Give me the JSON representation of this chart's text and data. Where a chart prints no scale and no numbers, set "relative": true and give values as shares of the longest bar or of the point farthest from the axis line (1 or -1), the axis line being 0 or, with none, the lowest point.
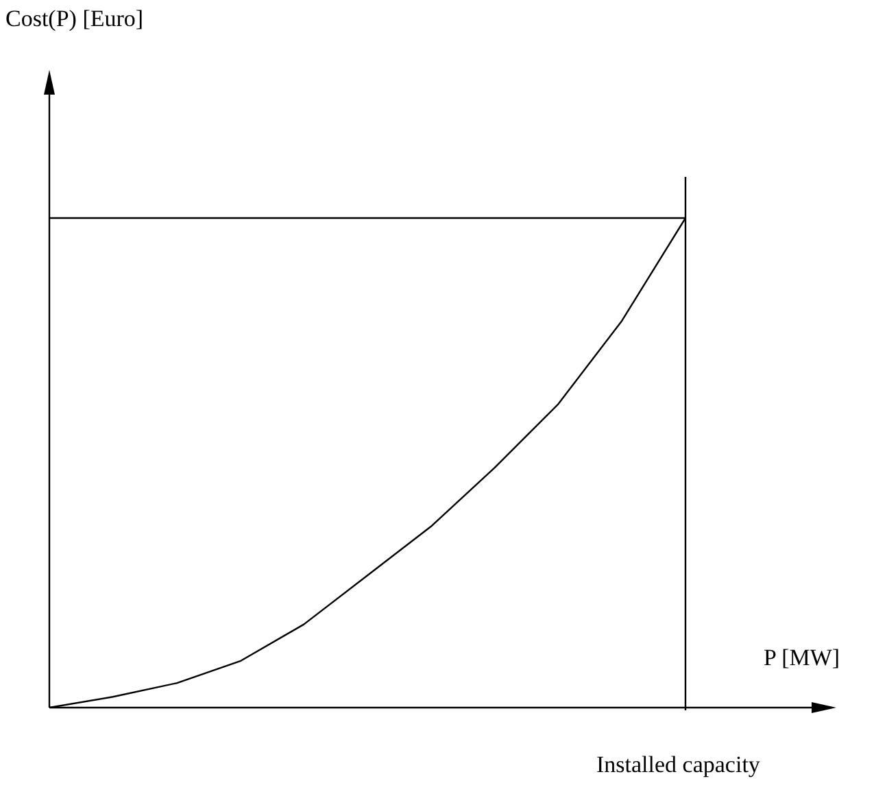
{
  "chart_data": {
    "type": "line",
    "relative": true,
    "xlabel": "P [MW]",
    "categories": [
      null,
      null,
      null,
      null,
      null,
      null,
      null,
      null,
      null,
      null,
      null
    ],
    "series": [
      {
        "color": "#000000",
        "values": [
          0,
          0.022,
          0.05,
          0.095,
          0.17,
          0.27,
          0.37,
          0.49,
          0.62,
          0.79,
          1
        ]
      }
    ],
    "ref_lines": [
      {
        "axis": "y",
        "value": 1,
        "color": "#000000"
      }
    ],
    "annotations": [
      "Cost(P) [Euro]",
      "Installed capacity"
    ],
    "marker": "none",
    "line_style": "solid",
    "grid": false,
    "legend": false
  }
}
